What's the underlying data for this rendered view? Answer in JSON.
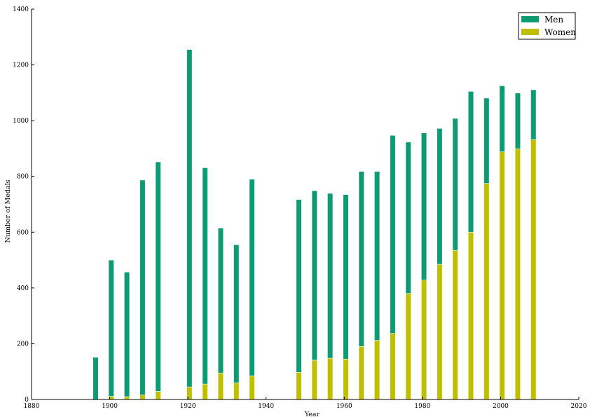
{
  "chart_data": {
    "type": "bar",
    "stacked": true,
    "xlabel": "Year",
    "ylabel": "Number of Medals",
    "xlim": [
      1880,
      2020
    ],
    "ylim": [
      0,
      1400
    ],
    "xticks": [
      1880,
      1900,
      1920,
      1940,
      1960,
      1980,
      2000,
      2020
    ],
    "yticks": [
      0,
      200,
      400,
      600,
      800,
      1000,
      1200,
      1400
    ],
    "legend_position": "top-right",
    "grid": false,
    "x": [
      1896,
      1900,
      1904,
      1908,
      1912,
      1920,
      1924,
      1928,
      1932,
      1936,
      1948,
      1952,
      1956,
      1960,
      1964,
      1968,
      1972,
      1976,
      1980,
      1984,
      1988,
      1992,
      1996,
      2000,
      2004,
      2008
    ],
    "series": [
      {
        "name": "Women",
        "color": "#bfbf00",
        "values": [
          0,
          11,
          10,
          16,
          29,
          45,
          55,
          95,
          60,
          85,
          97,
          141,
          148,
          145,
          190,
          212,
          237,
          380,
          428,
          485,
          535,
          600,
          775,
          888,
          899,
          932
        ]
      },
      {
        "name": "Men",
        "color": "#0e9a72",
        "values": [
          151,
          489,
          447,
          771,
          823,
          1210,
          776,
          520,
          495,
          705,
          620,
          608,
          591,
          590,
          628,
          606,
          710,
          543,
          528,
          487,
          473,
          505,
          306,
          237,
          200,
          179
        ]
      }
    ]
  }
}
